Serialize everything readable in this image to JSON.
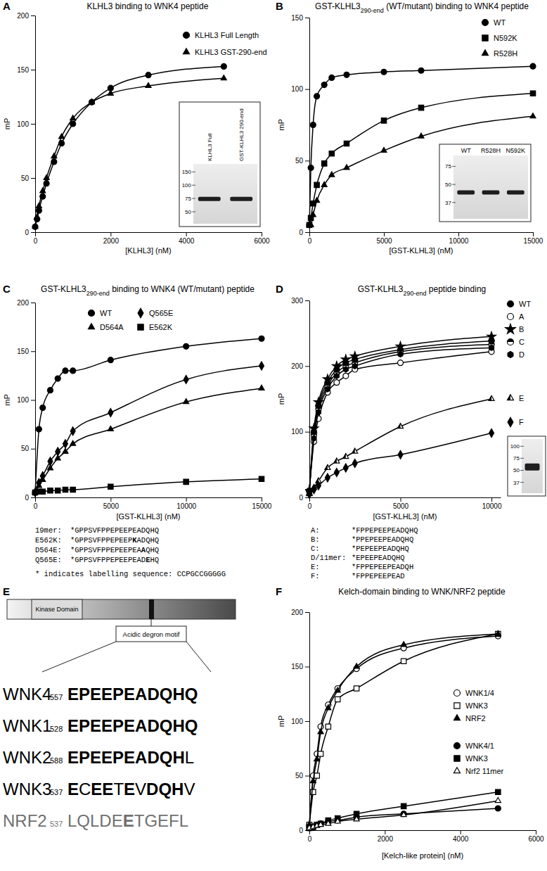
{
  "chart_data": [
    {
      "panel": "A",
      "type": "line",
      "title": [
        {
          "text": "KLHL3 binding to WNK4 peptide"
        }
      ],
      "x_label": "[KLHL3] (nM)",
      "y_label": "mP",
      "xlim": [
        0,
        6000
      ],
      "xticks": [
        0,
        2000,
        4000,
        6000
      ],
      "ylim": [
        0,
        200
      ],
      "yticks": [
        0,
        50,
        100,
        150,
        200
      ],
      "x": [
        0,
        50,
        100,
        200,
        300,
        500,
        700,
        1000,
        1500,
        2000,
        3000,
        5000
      ],
      "series": [
        {
          "name": "KLHL3 Full Length",
          "color": "#000000",
          "marker": "circle",
          "values": [
            5,
            12,
            20,
            33,
            45,
            65,
            82,
            100,
            120,
            133,
            145,
            153
          ]
        },
        {
          "name": "KLHL3 GST-290-end",
          "color": "#000000",
          "marker": "triangle",
          "values": [
            5,
            14,
            24,
            38,
            50,
            70,
            88,
            105,
            120,
            128,
            135,
            142
          ]
        }
      ],
      "inset": {
        "lanes": [
          "KLHL3 Full",
          "GST-KLHL3 290-end"
        ],
        "markers": [
          150,
          100,
          75,
          50
        ]
      }
    },
    {
      "panel": "B",
      "type": "line",
      "title": [
        {
          "text": "GST-KLHL3"
        },
        {
          "sub": "290-end"
        },
        {
          "text": " (WT/mutant) binding to WNK4 peptide"
        }
      ],
      "x_label": "[GST-KLHL3] (nM)",
      "y_label": "mP",
      "xlim": [
        0,
        15000
      ],
      "xticks": [
        0,
        5000,
        10000,
        15000
      ],
      "ylim": [
        0,
        150
      ],
      "yticks": [
        0,
        50,
        100,
        150
      ],
      "x": [
        0,
        100,
        250,
        500,
        1000,
        1500,
        2500,
        5000,
        7500,
        15000
      ],
      "series": [
        {
          "name": "WT",
          "color": "#000000",
          "marker": "circle",
          "values": [
            5,
            45,
            75,
            95,
            103,
            108,
            110,
            112,
            113,
            116
          ]
        },
        {
          "name": "N592K",
          "color": "#000000",
          "marker": "square",
          "values": [
            5,
            10,
            20,
            33,
            48,
            55,
            62,
            78,
            87,
            97
          ]
        },
        {
          "name": "R528H",
          "color": "#000000",
          "marker": "triangle",
          "values": [
            5,
            5,
            12,
            22,
            33,
            40,
            45,
            57,
            67,
            81
          ]
        }
      ],
      "inset": {
        "lanes": [
          "WT",
          "R528H",
          "N592K"
        ],
        "markers": [
          75,
          50,
          37
        ]
      }
    },
    {
      "panel": "C",
      "type": "line",
      "title": [
        {
          "text": "GST-KLHL3"
        },
        {
          "sub": "290-end"
        },
        {
          "text": " binding to WNK4 (WT/mutant) peptide"
        }
      ],
      "x_label": "[GST-KLHL3] (nM)",
      "y_label": "mP",
      "xlim": [
        0,
        15000
      ],
      "xticks": [
        0,
        5000,
        10000,
        15000
      ],
      "ylim": [
        0,
        200
      ],
      "yticks": [
        0,
        50,
        100,
        150,
        200
      ],
      "x": [
        0,
        250,
        500,
        1000,
        1500,
        2000,
        2500,
        5000,
        10000,
        15000
      ],
      "series": [
        {
          "name": "WT",
          "color": "#000000",
          "marker": "circle",
          "values": [
            5,
            70,
            92,
            110,
            122,
            130,
            130,
            141,
            155,
            163
          ]
        },
        {
          "name": "Q565E",
          "color": "#000000",
          "marker": "diamond",
          "values": [
            5,
            15,
            22,
            37,
            47,
            55,
            68,
            87,
            121,
            135
          ]
        },
        {
          "name": "D564A",
          "color": "#000000",
          "marker": "triangle",
          "values": [
            5,
            12,
            18,
            30,
            40,
            47,
            55,
            70,
            98,
            112
          ]
        },
        {
          "name": "E562K",
          "color": "#000000",
          "marker": "square",
          "values": [
            5,
            6,
            6,
            7,
            7,
            8,
            8,
            11,
            16,
            19
          ]
        }
      ],
      "sequences": [
        {
          "label": "19mer:",
          "parts": [
            {
              "plain": "*GPPSVFPPEPEEPEADQHQ"
            }
          ]
        },
        {
          "label": "E562K:",
          "parts": [
            {
              "plain": "*GPPSVFPPEPEEP"
            },
            {
              "bold": "K"
            },
            {
              "plain": "ADQHQ"
            }
          ]
        },
        {
          "label": "D564E:",
          "parts": [
            {
              "plain": "*GPPSVFPPEPEEPEA"
            },
            {
              "bold": "A"
            },
            {
              "plain": "QHQ"
            }
          ]
        },
        {
          "label": "Q565E:",
          "parts": [
            {
              "plain": "*GPPSVFPPEPEEPEAD"
            },
            {
              "bold": "E"
            },
            {
              "plain": "HQ"
            }
          ]
        }
      ],
      "footnote": "* indicates labelling sequence: CCPGCCGGGGG"
    },
    {
      "panel": "D",
      "type": "line",
      "title": [
        {
          "text": "GST-KLHL3"
        },
        {
          "sub": "290-end"
        },
        {
          "text": " peptide binding"
        }
      ],
      "x_label": "[GST-KLHL3] (nM)",
      "y_label": "mP",
      "xlim": [
        0,
        10500
      ],
      "xticks": [
        0,
        5000,
        10000
      ],
      "ylim": [
        0,
        300
      ],
      "yticks": [
        0,
        100,
        200,
        300
      ],
      "x": [
        0,
        250,
        500,
        1000,
        1500,
        2000,
        2500,
        5000,
        10000
      ],
      "series": [
        {
          "name": "WT",
          "color": "#000000",
          "marker": "circle",
          "values": [
            10,
            100,
            140,
            175,
            195,
            205,
            210,
            225,
            238
          ]
        },
        {
          "name": "A",
          "color": "#000000",
          "marker": "circle-open",
          "values": [
            10,
            85,
            120,
            160,
            175,
            185,
            195,
            205,
            222
          ]
        },
        {
          "name": "B",
          "color": "#000000",
          "marker": "star",
          "values": [
            10,
            105,
            145,
            180,
            200,
            210,
            215,
            230,
            245
          ]
        },
        {
          "name": "C",
          "color": "#000000",
          "marker": "circle-half",
          "values": [
            10,
            95,
            135,
            170,
            190,
            200,
            205,
            222,
            233
          ]
        },
        {
          "name": "D",
          "color": "#000000",
          "marker": "hexagon",
          "values": [
            10,
            90,
            130,
            165,
            185,
            195,
            200,
            218,
            228
          ]
        },
        {
          "name": "E",
          "color": "#000000",
          "marker": "triangle-half",
          "values": [
            5,
            15,
            25,
            45,
            55,
            62,
            70,
            108,
            150
          ]
        },
        {
          "name": "F",
          "color": "#000000",
          "marker": "diamond",
          "values": [
            5,
            12,
            18,
            30,
            38,
            45,
            52,
            65,
            98
          ]
        }
      ],
      "sequences": [
        {
          "label": "A:",
          "parts": [
            {
              "plain": "*FPPEPEEPEADQHQ"
            }
          ]
        },
        {
          "label": "B:",
          "parts": [
            {
              "plain": "*PPEPEEPEADQHQ"
            }
          ]
        },
        {
          "label": "C:",
          "parts": [
            {
              "plain": "*PEPEEPEADQHQ"
            }
          ]
        },
        {
          "label": "D/11mer:",
          "parts": [
            {
              "plain": "*EPEEPEADQHQ"
            }
          ]
        },
        {
          "label": "E:",
          "parts": [
            {
              "plain": "*FPPEPEEPEADQH"
            }
          ]
        },
        {
          "label": "F:",
          "parts": [
            {
              "plain": "*FPPEPEEPEAD"
            }
          ]
        }
      ],
      "inset": {
        "markers": [
          100,
          75,
          50,
          37
        ]
      }
    },
    {
      "panel": "E",
      "type": "diagram",
      "domain_label": "Kinase Domain",
      "motif_label": "Acidic degron motif",
      "rows": [
        {
          "name": "WNK4",
          "start": 557,
          "parts": [
            {
              "bold": "EPEEPEADQHQ"
            }
          ]
        },
        {
          "name": "WNK1",
          "start": 528,
          "parts": [
            {
              "bold": "EPEEPEADQHQ"
            }
          ]
        },
        {
          "name": "WNK2",
          "start": 588,
          "parts": [
            {
              "bold": "EPEEPEADQH"
            },
            {
              "plain": "L"
            }
          ]
        },
        {
          "name": "WNK3",
          "start": 537,
          "parts": [
            {
              "bold": "E"
            },
            {
              "plain": "C"
            },
            {
              "bold": "EE"
            },
            {
              "plain": "T"
            },
            {
              "bold": "E"
            },
            {
              "plain": "V"
            },
            {
              "bold": "DQH"
            },
            {
              "plain": "V"
            }
          ]
        },
        {
          "name": "NRF2",
          "start": 537,
          "color": "#707070",
          "parts": [
            {
              "plain": "LQLDE"
            },
            {
              "bold": "E"
            },
            {
              "plain": "TGEFL"
            }
          ]
        }
      ]
    },
    {
      "panel": "F",
      "type": "line",
      "title": [
        {
          "text": "Kelch-domain binding to WNK/NRF2 peptide"
        }
      ],
      "x_label": "[Kelch-like protein] (nM)",
      "y_label": "mP",
      "xlim": [
        0,
        6000
      ],
      "xticks": [
        0,
        2000,
        4000,
        6000
      ],
      "ylim": [
        0,
        200
      ],
      "yticks": [
        0,
        50,
        100,
        150,
        200
      ],
      "x": [
        0,
        100,
        200,
        300,
        500,
        750,
        1250,
        2500,
        5000
      ],
      "series": [
        {
          "name": "WNK1/4",
          "color": "#000000",
          "marker": "circle-open",
          "values": [
            5,
            50,
            70,
            95,
            115,
            130,
            148,
            167,
            178
          ]
        },
        {
          "name": "WNK3",
          "color": "#000000",
          "marker": "square-open",
          "values": [
            5,
            35,
            50,
            70,
            95,
            120,
            130,
            155,
            180
          ]
        },
        {
          "name": "NRF2",
          "color": "#000000",
          "marker": "triangle",
          "values": [
            5,
            45,
            65,
            90,
            112,
            128,
            150,
            170,
            180
          ]
        },
        {
          "name": "WNK4/1",
          "color": "#000000",
          "marker": "circle",
          "values": [
            2,
            3,
            5,
            6,
            8,
            9,
            12,
            15,
            20
          ]
        },
        {
          "name": "WNK3",
          "color": "#000000",
          "marker": "square",
          "values": [
            2,
            3,
            5,
            6,
            9,
            11,
            15,
            22,
            35
          ]
        },
        {
          "name": "Nrf2 11mer",
          "color": "#000000",
          "marker": "triangle-open",
          "values": [
            2,
            3,
            4,
            5,
            6,
            8,
            10,
            14,
            27
          ]
        }
      ]
    }
  ]
}
